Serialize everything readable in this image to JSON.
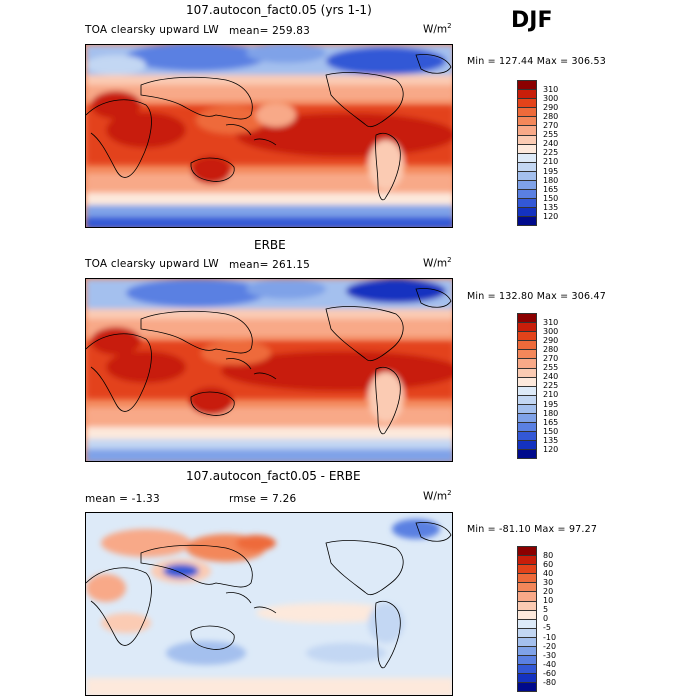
{
  "season": "DJF",
  "panels": [
    {
      "title": "107.autocon_fact0.05 (yrs 1-1)",
      "variable": "TOA clearsky upward LW",
      "mean": "mean= 259.83",
      "units": "W/m",
      "units_sup": "2",
      "minmax": "Min = 127.44 Max = 306.53",
      "levels": [
        "310",
        "300",
        "290",
        "280",
        "270",
        "255",
        "240",
        "225",
        "210",
        "195",
        "180",
        "165",
        "150",
        "135",
        "120"
      ],
      "colors": [
        "#8b0000",
        "#c81e0a",
        "#e3431a",
        "#ee6a3a",
        "#f3875a",
        "#f8a988",
        "#fbcbb3",
        "#fde9dc",
        "#ddeaf8",
        "#c3d7f3",
        "#a4c0ee",
        "#7fa2e8",
        "#5a80e2",
        "#3358d6",
        "#1432c0",
        "#000a8c"
      ]
    },
    {
      "title": "ERBE",
      "variable": "TOA clearsky upward LW",
      "mean": "mean= 261.15",
      "units": "W/m",
      "units_sup": "2",
      "minmax": "Min = 132.80 Max = 306.47",
      "levels": [
        "310",
        "300",
        "290",
        "280",
        "270",
        "255",
        "240",
        "225",
        "210",
        "195",
        "180",
        "165",
        "150",
        "135",
        "120"
      ],
      "colors": [
        "#8b0000",
        "#c81e0a",
        "#e3431a",
        "#ee6a3a",
        "#f3875a",
        "#f8a988",
        "#fbcbb3",
        "#fde9dc",
        "#ddeaf8",
        "#c3d7f3",
        "#a4c0ee",
        "#7fa2e8",
        "#5a80e2",
        "#3358d6",
        "#1432c0",
        "#000a8c"
      ]
    },
    {
      "title": "107.autocon_fact0.05 - ERBE",
      "mean": "mean =  -1.33",
      "rmse": "rmse =   7.26",
      "units": "W/m",
      "units_sup": "2",
      "minmax": "Min = -81.10 Max =  97.27",
      "levels": [
        "80",
        "60",
        "40",
        "30",
        "20",
        "10",
        "5",
        "0",
        "-5",
        "-10",
        "-20",
        "-30",
        "-40",
        "-60",
        "-80"
      ],
      "colors": [
        "#8b0000",
        "#c81e0a",
        "#e3431a",
        "#ee6a3a",
        "#f3875a",
        "#f8a988",
        "#fbcbb3",
        "#fde9dc",
        "#ddeaf8",
        "#c3d7f3",
        "#a4c0ee",
        "#7fa2e8",
        "#5a80e2",
        "#3358d6",
        "#1432c0",
        "#000a8c"
      ]
    }
  ]
}
